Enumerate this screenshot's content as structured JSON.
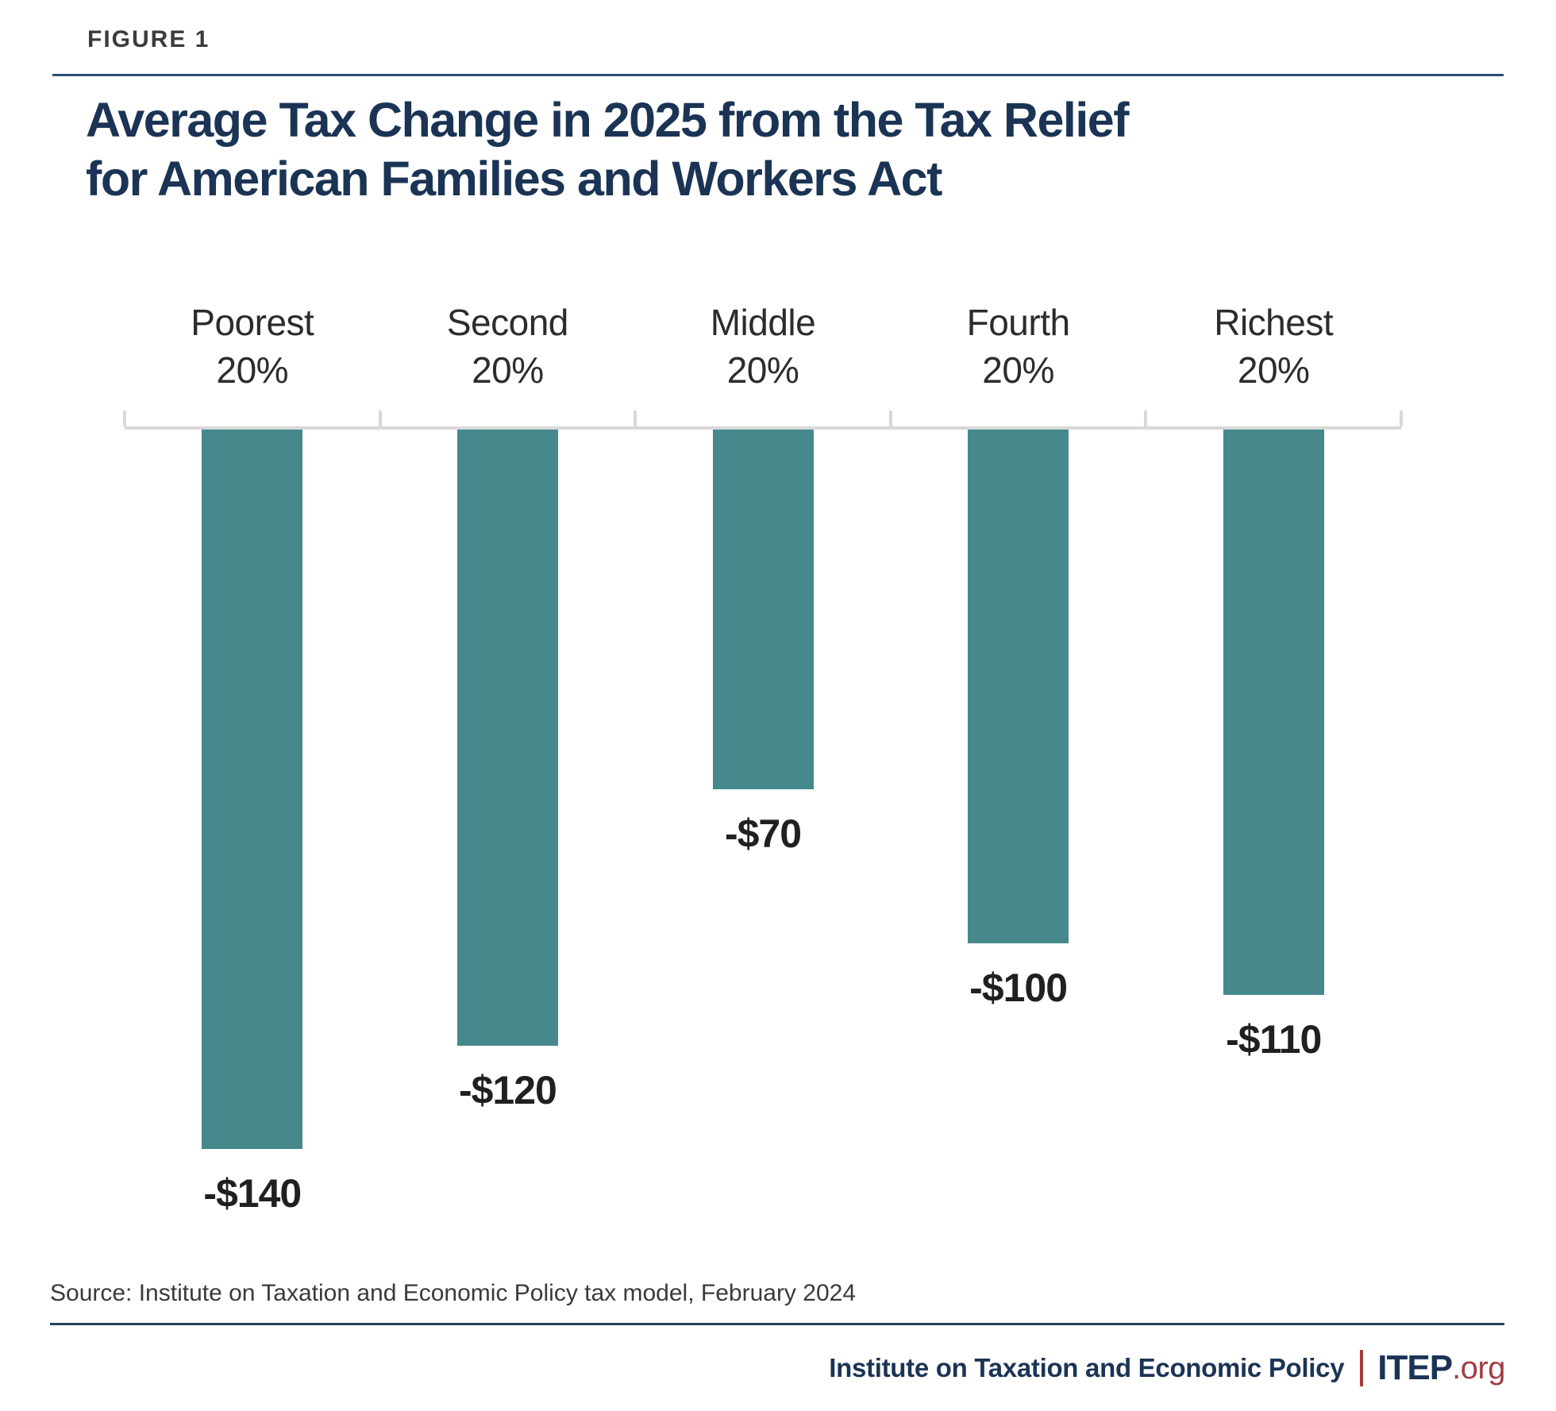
{
  "figure_label": "FIGURE 1",
  "title": {
    "line1": "Average Tax Change in 2025 from the Tax Relief",
    "line2": "for American Families and Workers Act"
  },
  "chart_data": {
    "type": "bar",
    "title": "Average Tax Change in 2025 from the Tax Relief for American Families and Workers Act",
    "categories": [
      "Poorest 20%",
      "Second 20%",
      "Middle 20%",
      "Fourth 20%",
      "Richest 20%"
    ],
    "category_lines": [
      [
        "Poorest",
        "20%"
      ],
      [
        "Second",
        "20%"
      ],
      [
        "Middle",
        "20%"
      ],
      [
        "Fourth",
        "20%"
      ],
      [
        "Richest",
        "20%"
      ]
    ],
    "values": [
      -140,
      -120,
      -70,
      -100,
      -110
    ],
    "value_labels": [
      "-$140",
      "-$120",
      "-$70",
      "-$100",
      "-$110"
    ],
    "xlabel": "",
    "ylabel": "",
    "ylim": [
      -150,
      0
    ],
    "grid": false,
    "legend_position": "none",
    "bar_color": "#45898C",
    "axis_color": "#D8D8D8",
    "baseline_note": "zero axis at top with end ticks; bars extend downward for negative values"
  },
  "source_note": "Source: Institute on Taxation and Economic Policy tax model, February 2024",
  "footer": {
    "org_name": "Institute on Taxation and Economic Policy",
    "brand": "ITEP",
    "brand_suffix": ".org"
  },
  "colors": {
    "title_navy": "#1B3455",
    "bar_teal": "#45898C",
    "axis_gray": "#D8D8D8",
    "accent_red": "#A23E41",
    "rule_navy": "#2F4E74"
  }
}
